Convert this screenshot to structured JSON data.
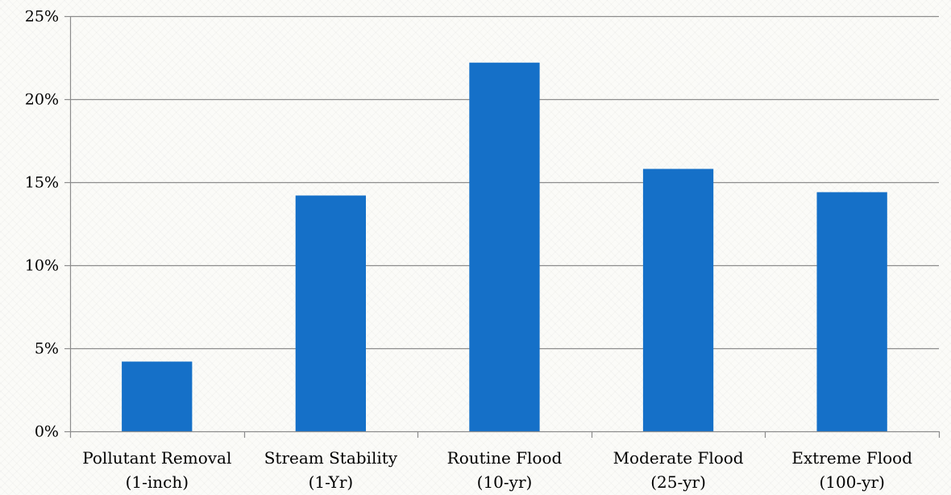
{
  "chart_data": {
    "type": "bar",
    "title": "",
    "xlabel": "",
    "ylabel": "",
    "categories": [
      [
        "Pollutant Removal",
        "(1-inch)"
      ],
      [
        "Stream Stability",
        "(1-Yr)"
      ],
      [
        "Routine Flood",
        "(10-yr)"
      ],
      [
        "Moderate Flood",
        "(25-yr)"
      ],
      [
        "Extreme Flood",
        "(100-yr)"
      ]
    ],
    "values": [
      4.2,
      14.2,
      22.2,
      15.8,
      14.4
    ],
    "value_unit": "%",
    "ylim": [
      0,
      25
    ],
    "yticks": [
      0,
      5,
      10,
      15,
      20,
      25
    ],
    "ytick_labels": [
      "0%",
      "5%",
      "10%",
      "15%",
      "20%",
      "25%"
    ],
    "grid": true,
    "legend": "none",
    "colors": {
      "bar": "#1570c8",
      "grid": "#8c8c8c",
      "axis": "#8c8c8c"
    }
  }
}
